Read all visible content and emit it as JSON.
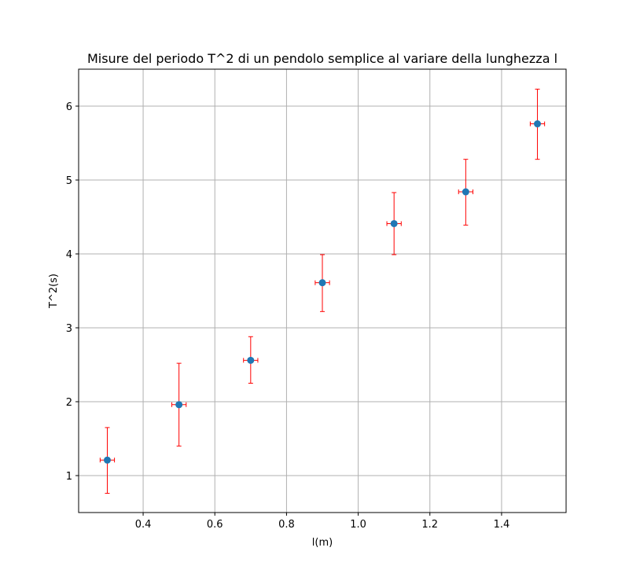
{
  "chart_data": {
    "type": "scatter",
    "title": "Misure del periodo T^2 di un pendolo semplice al variare della lunghezza l",
    "xlabel": "l(m)",
    "ylabel": "T^2(s)",
    "xlim": [
      0.22,
      1.58
    ],
    "ylim": [
      0.5,
      6.5
    ],
    "xticks": [
      0.4,
      0.6,
      0.8,
      1.0,
      1.2,
      1.4
    ],
    "xtick_labels": [
      "0.4",
      "0.6",
      "0.8",
      "1.0",
      "1.2",
      "1.4"
    ],
    "yticks": [
      1,
      2,
      3,
      4,
      5,
      6
    ],
    "ytick_labels": [
      "1",
      "2",
      "3",
      "4",
      "5",
      "6"
    ],
    "grid": true,
    "series": [
      {
        "marker_color": "#1f77b4",
        "errorbar_color": "#ff0000",
        "points": [
          {
            "x": 0.3,
            "y": 1.21,
            "y_lo": 0.76,
            "y_hi": 1.65,
            "x_err": 0.02
          },
          {
            "x": 0.5,
            "y": 1.96,
            "y_lo": 1.4,
            "y_hi": 2.52,
            "x_err": 0.02
          },
          {
            "x": 0.7,
            "y": 2.56,
            "y_lo": 2.25,
            "y_hi": 2.88,
            "x_err": 0.02
          },
          {
            "x": 0.9,
            "y": 3.61,
            "y_lo": 3.22,
            "y_hi": 3.99,
            "x_err": 0.02
          },
          {
            "x": 1.1,
            "y": 4.41,
            "y_lo": 3.99,
            "y_hi": 4.83,
            "x_err": 0.02
          },
          {
            "x": 1.3,
            "y": 4.84,
            "y_lo": 4.39,
            "y_hi": 5.28,
            "x_err": 0.02
          },
          {
            "x": 1.5,
            "y": 5.76,
            "y_lo": 5.28,
            "y_hi": 6.23,
            "x_err": 0.02
          }
        ]
      }
    ]
  }
}
